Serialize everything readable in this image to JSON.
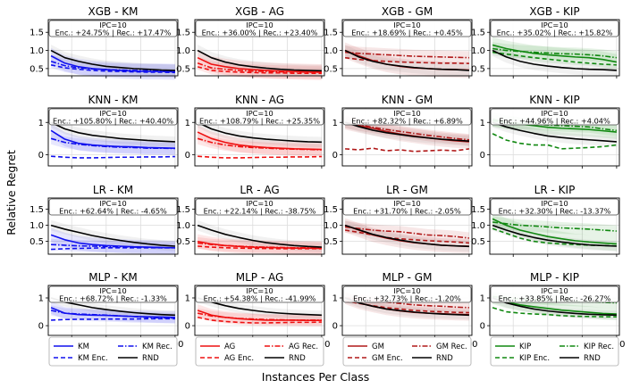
{
  "figure": {
    "ylabel": "Relative Regret",
    "xlabel": "Instances Per Class",
    "x_ticks": [
      25,
      50,
      75,
      100
    ]
  },
  "colors": {
    "KM": "#1010ee",
    "AG": "#ee1010",
    "GM": "#b01818",
    "KIP": "#108810",
    "RND": "#000000"
  },
  "legends": [
    {
      "main": "KM",
      "rec": "KM Rec.",
      "enc": "KM Enc.",
      "rnd": "RND",
      "color": "#1010ee"
    },
    {
      "main": "AG",
      "rec": "AG Rec.",
      "enc": "AG Enc.",
      "rnd": "RND",
      "color": "#ee1010"
    },
    {
      "main": "GM",
      "rec": "GM Rec.",
      "enc": "GM Enc.",
      "rnd": "RND",
      "color": "#b01818"
    },
    {
      "main": "KIP",
      "rec": "KIP Rec.",
      "enc": "KIP Enc.",
      "rnd": "RND",
      "color": "#108810"
    }
  ],
  "chart_data": [
    {
      "type": "line",
      "title": "XGB - KM",
      "ipc": "IPC=10",
      "stats": "Enc.:  +24.75% | Rec.: +17.47%",
      "method": "KM",
      "ylim": [
        0.3,
        1.85
      ],
      "yticks": [
        0.5,
        1.0,
        1.5
      ],
      "x": [
        10,
        20,
        30,
        40,
        50,
        60,
        70,
        80,
        90,
        100
      ],
      "series": {
        "main": [
          0.85,
          0.65,
          0.55,
          0.5,
          0.47,
          0.45,
          0.43,
          0.42,
          0.42,
          0.41
        ],
        "rec": [
          0.7,
          0.58,
          0.52,
          0.49,
          0.47,
          0.46,
          0.45,
          0.44,
          0.44,
          0.43
        ],
        "enc": [
          0.6,
          0.52,
          0.48,
          0.45,
          0.43,
          0.42,
          0.41,
          0.4,
          0.4,
          0.39
        ],
        "rnd": [
          1.0,
          0.8,
          0.7,
          0.62,
          0.56,
          0.53,
          0.5,
          0.48,
          0.46,
          0.45
        ]
      }
    },
    {
      "type": "line",
      "title": "XGB - AG",
      "ipc": "IPC=10",
      "stats": "Enc.:  +36.00% | Rec.: +23.40%",
      "method": "AG",
      "ylim": [
        0.3,
        1.85
      ],
      "yticks": [
        0.5,
        1.0,
        1.5
      ],
      "x": [
        10,
        20,
        30,
        40,
        50,
        60,
        70,
        80,
        90,
        100
      ],
      "series": {
        "main": [
          0.8,
          0.62,
          0.55,
          0.5,
          0.47,
          0.45,
          0.43,
          0.42,
          0.41,
          0.4
        ],
        "rec": [
          0.65,
          0.52,
          0.48,
          0.45,
          0.43,
          0.42,
          0.41,
          0.41,
          0.4,
          0.4
        ],
        "enc": [
          0.55,
          0.45,
          0.42,
          0.4,
          0.39,
          0.38,
          0.38,
          0.37,
          0.37,
          0.37
        ],
        "rnd": [
          1.0,
          0.8,
          0.68,
          0.6,
          0.55,
          0.51,
          0.48,
          0.46,
          0.45,
          0.44
        ]
      }
    },
    {
      "type": "line",
      "title": "XGB - GM",
      "ipc": "IPC=10",
      "stats": "Enc.:  +18.69% | Rec.: +0.45%",
      "method": "GM",
      "ylim": [
        0.3,
        1.85
      ],
      "yticks": [
        0.5,
        1.0,
        1.5
      ],
      "x": [
        10,
        20,
        30,
        40,
        50,
        60,
        70,
        80,
        90,
        100
      ],
      "series": {
        "main": [
          1.0,
          0.85,
          0.72,
          0.62,
          0.56,
          0.52,
          0.5,
          0.48,
          0.47,
          0.46
        ],
        "rec": [
          0.95,
          0.92,
          0.9,
          0.88,
          0.86,
          0.84,
          0.83,
          0.82,
          0.81,
          0.8
        ],
        "enc": [
          0.8,
          0.75,
          0.72,
          0.7,
          0.68,
          0.67,
          0.66,
          0.65,
          0.65,
          0.64
        ],
        "rnd": [
          1.0,
          0.82,
          0.7,
          0.62,
          0.57,
          0.53,
          0.5,
          0.48,
          0.47,
          0.45
        ]
      }
    },
    {
      "type": "line",
      "title": "XGB - KIP",
      "ipc": "IPC=10",
      "stats": "Enc.:  +35.02% | Rec.: +15.82%",
      "method": "KIP",
      "ylim": [
        0.3,
        1.85
      ],
      "yticks": [
        0.5,
        1.0,
        1.5
      ],
      "x": [
        10,
        20,
        30,
        40,
        50,
        60,
        70,
        80,
        90,
        100
      ],
      "series": {
        "main": [
          1.15,
          1.05,
          0.98,
          0.92,
          0.88,
          0.85,
          0.82,
          0.8,
          0.75,
          0.68
        ],
        "rec": [
          1.05,
          1.0,
          0.97,
          0.95,
          0.93,
          0.91,
          0.9,
          0.88,
          0.85,
          0.8
        ],
        "enc": [
          0.95,
          0.9,
          0.85,
          0.8,
          0.76,
          0.72,
          0.68,
          0.65,
          0.62,
          0.6
        ],
        "rnd": [
          1.0,
          0.82,
          0.7,
          0.62,
          0.57,
          0.53,
          0.5,
          0.48,
          0.47,
          0.45
        ]
      }
    },
    {
      "type": "line",
      "title": "KNN - KM",
      "ipc": "IPC=10",
      "stats": "Enc.:  +105.80% | Rec.: +40.40%",
      "method": "KM",
      "ylim": [
        -0.35,
        1.45
      ],
      "yticks": [
        0,
        1
      ],
      "x": [
        10,
        20,
        30,
        40,
        50,
        60,
        70,
        80,
        90,
        100
      ],
      "series": {
        "main": [
          0.75,
          0.48,
          0.35,
          0.3,
          0.27,
          0.25,
          0.24,
          0.22,
          0.21,
          0.2
        ],
        "rec": [
          0.5,
          0.38,
          0.32,
          0.28,
          0.25,
          0.23,
          0.22,
          0.2,
          0.2,
          0.19
        ],
        "enc": [
          -0.05,
          -0.08,
          -0.1,
          -0.1,
          -0.09,
          -0.08,
          -0.08,
          -0.07,
          -0.07,
          -0.06
        ],
        "rnd": [
          1.0,
          0.8,
          0.68,
          0.6,
          0.55,
          0.5,
          0.47,
          0.44,
          0.42,
          0.4
        ]
      }
    },
    {
      "type": "line",
      "title": "KNN - AG",
      "ipc": "IPC=10",
      "stats": "Enc.:  +108.79% | Rec.: +25.35%",
      "method": "AG",
      "ylim": [
        -0.35,
        1.45
      ],
      "yticks": [
        0,
        1
      ],
      "x": [
        10,
        20,
        30,
        40,
        50,
        60,
        70,
        80,
        90,
        100
      ],
      "series": {
        "main": [
          0.7,
          0.5,
          0.38,
          0.3,
          0.25,
          0.22,
          0.2,
          0.18,
          0.17,
          0.16
        ],
        "rec": [
          0.5,
          0.38,
          0.3,
          0.25,
          0.22,
          0.2,
          0.18,
          0.17,
          0.16,
          0.15
        ],
        "enc": [
          -0.05,
          -0.08,
          -0.1,
          -0.1,
          -0.09,
          -0.08,
          -0.08,
          -0.07,
          -0.07,
          -0.06
        ],
        "rnd": [
          1.0,
          0.8,
          0.67,
          0.58,
          0.52,
          0.48,
          0.45,
          0.42,
          0.4,
          0.39
        ]
      }
    },
    {
      "type": "line",
      "title": "KNN - GM",
      "ipc": "IPC=10",
      "stats": "Enc.:  +82.32% | Rec.: +6.89%",
      "method": "GM",
      "ylim": [
        -0.35,
        1.45
      ],
      "yticks": [
        0,
        1
      ],
      "x": [
        10,
        20,
        30,
        40,
        50,
        60,
        70,
        80,
        90,
        100
      ],
      "series": {
        "main": [
          1.0,
          0.9,
          0.82,
          0.72,
          0.64,
          0.58,
          0.52,
          0.47,
          0.43,
          0.4
        ],
        "rec": [
          1.0,
          0.92,
          0.85,
          0.78,
          0.72,
          0.66,
          0.6,
          0.55,
          0.5,
          0.46
        ],
        "enc": [
          0.18,
          0.15,
          0.2,
          0.12,
          0.15,
          0.1,
          0.12,
          0.14,
          0.12,
          0.18
        ],
        "rnd": [
          1.0,
          0.87,
          0.76,
          0.68,
          0.62,
          0.56,
          0.52,
          0.48,
          0.45,
          0.42
        ]
      }
    },
    {
      "type": "line",
      "title": "KNN - KIP",
      "ipc": "IPC=10",
      "stats": "Enc.:  +44.96% | Rec.: +4.04%",
      "method": "KIP",
      "ylim": [
        -0.35,
        1.45
      ],
      "yticks": [
        0,
        1
      ],
      "x": [
        10,
        20,
        30,
        40,
        50,
        60,
        70,
        80,
        90,
        100
      ],
      "series": {
        "main": [
          1.1,
          1.0,
          0.95,
          0.9,
          0.85,
          0.82,
          0.8,
          0.78,
          0.74,
          0.7
        ],
        "rec": [
          1.05,
          1.0,
          0.97,
          0.95,
          0.92,
          0.9,
          0.88,
          0.86,
          0.8,
          0.75
        ],
        "enc": [
          0.65,
          0.45,
          0.35,
          0.3,
          0.3,
          0.18,
          0.2,
          0.22,
          0.25,
          0.3
        ],
        "rnd": [
          1.0,
          0.86,
          0.75,
          0.66,
          0.58,
          0.53,
          0.49,
          0.46,
          0.43,
          0.4
        ]
      }
    },
    {
      "type": "line",
      "title": "LR - KM",
      "ipc": "IPC=10",
      "stats": "Enc.:  +62.64% | Rec.: -4.65%",
      "method": "KM",
      "ylim": [
        0.1,
        1.85
      ],
      "yticks": [
        0.5,
        1.0,
        1.5
      ],
      "x": [
        10,
        20,
        30,
        40,
        50,
        60,
        70,
        80,
        90,
        100
      ],
      "series": {
        "main": [
          0.7,
          0.55,
          0.45,
          0.4,
          0.37,
          0.35,
          0.33,
          0.32,
          0.31,
          0.3
        ],
        "rec": [
          0.4,
          0.38,
          0.36,
          0.35,
          0.34,
          0.33,
          0.32,
          0.31,
          0.3,
          0.3
        ],
        "enc": [
          0.25,
          0.27,
          0.28,
          0.29,
          0.3,
          0.3,
          0.3,
          0.3,
          0.3,
          0.3
        ],
        "rnd": [
          1.0,
          0.88,
          0.78,
          0.68,
          0.6,
          0.53,
          0.47,
          0.42,
          0.38,
          0.35
        ]
      }
    },
    {
      "type": "line",
      "title": "LR - AG",
      "ipc": "IPC=10",
      "stats": "Enc.:  +22.14% | Rec.: -38.75%",
      "method": "AG",
      "ylim": [
        0.1,
        1.85
      ],
      "yticks": [
        0.5,
        1.0,
        1.5
      ],
      "x": [
        10,
        20,
        30,
        40,
        50,
        60,
        70,
        80,
        90,
        100
      ],
      "series": {
        "main": [
          0.5,
          0.42,
          0.37,
          0.34,
          0.32,
          0.31,
          0.3,
          0.29,
          0.29,
          0.28
        ],
        "rec": [
          0.45,
          0.4,
          0.37,
          0.35,
          0.33,
          0.32,
          0.31,
          0.3,
          0.3,
          0.3
        ],
        "enc": [
          0.35,
          0.32,
          0.3,
          0.29,
          0.28,
          0.28,
          0.27,
          0.27,
          0.27,
          0.27
        ],
        "rnd": [
          1.0,
          0.85,
          0.72,
          0.62,
          0.53,
          0.46,
          0.41,
          0.37,
          0.34,
          0.32
        ]
      }
    },
    {
      "type": "line",
      "title": "LR - GM",
      "ipc": "IPC=10",
      "stats": "Enc.:  +31.70% | Rec.: -2.05%",
      "method": "GM",
      "ylim": [
        0.1,
        1.85
      ],
      "yticks": [
        0.5,
        1.0,
        1.5
      ],
      "x": [
        10,
        20,
        30,
        40,
        50,
        60,
        70,
        80,
        90,
        100
      ],
      "series": {
        "main": [
          1.0,
          0.85,
          0.7,
          0.6,
          0.52,
          0.46,
          0.42,
          0.38,
          0.36,
          0.35
        ],
        "rec": [
          0.95,
          0.9,
          0.85,
          0.82,
          0.8,
          0.75,
          0.7,
          0.68,
          0.65,
          0.6
        ],
        "enc": [
          0.85,
          0.78,
          0.7,
          0.62,
          0.58,
          0.55,
          0.52,
          0.5,
          0.48,
          0.45
        ],
        "rnd": [
          1.0,
          0.86,
          0.72,
          0.62,
          0.54,
          0.47,
          0.42,
          0.38,
          0.36,
          0.34
        ]
      }
    },
    {
      "type": "line",
      "title": "LR - KIP",
      "ipc": "IPC=10",
      "stats": "Enc.:  +32.30% | Rec.: -13.37%",
      "method": "KIP",
      "ylim": [
        0.1,
        1.85
      ],
      "yticks": [
        0.5,
        1.0,
        1.5
      ],
      "x": [
        10,
        20,
        30,
        40,
        50,
        60,
        70,
        80,
        90,
        100
      ],
      "series": {
        "main": [
          1.2,
          1.0,
          0.85,
          0.75,
          0.65,
          0.58,
          0.52,
          0.48,
          0.45,
          0.42
        ],
        "rec": [
          1.1,
          1.05,
          1.0,
          0.98,
          0.95,
          0.92,
          0.9,
          0.88,
          0.85,
          0.82
        ],
        "enc": [
          0.9,
          0.75,
          0.6,
          0.5,
          0.45,
          0.42,
          0.4,
          0.38,
          0.37,
          0.36
        ],
        "rnd": [
          1.0,
          0.85,
          0.72,
          0.62,
          0.54,
          0.48,
          0.43,
          0.39,
          0.37,
          0.35
        ]
      }
    },
    {
      "type": "line",
      "title": "MLP - KM",
      "ipc": "IPC=10",
      "stats": "Enc.:  +68.72% | Rec.: -1.33%",
      "method": "KM",
      "ylim": [
        -0.35,
        1.45
      ],
      "yticks": [
        0,
        1
      ],
      "x": [
        10,
        20,
        30,
        40,
        50,
        60,
        70,
        80,
        90,
        100
      ],
      "series": {
        "main": [
          0.65,
          0.45,
          0.4,
          0.38,
          0.37,
          0.35,
          0.33,
          0.32,
          0.31,
          0.3
        ],
        "rec": [
          0.55,
          0.45,
          0.42,
          0.4,
          0.38,
          0.35,
          0.33,
          0.3,
          0.28,
          0.27
        ],
        "enc": [
          0.2,
          0.22,
          0.23,
          0.23,
          0.24,
          0.24,
          0.24,
          0.25,
          0.25,
          0.25
        ],
        "rnd": [
          1.0,
          0.85,
          0.75,
          0.65,
          0.58,
          0.52,
          0.47,
          0.43,
          0.4,
          0.38
        ]
      }
    },
    {
      "type": "line",
      "title": "MLP - AG",
      "ipc": "IPC=10",
      "stats": "Enc.:  +54.38% | Rec.: -41.99%",
      "method": "AG",
      "ylim": [
        -0.35,
        1.45
      ],
      "yticks": [
        0,
        1
      ],
      "x": [
        10,
        20,
        30,
        40,
        50,
        60,
        70,
        80,
        90,
        100
      ],
      "series": {
        "main": [
          0.55,
          0.38,
          0.3,
          0.25,
          0.22,
          0.2,
          0.2,
          0.2,
          0.19,
          0.19
        ],
        "rec": [
          0.45,
          0.35,
          0.3,
          0.26,
          0.24,
          0.22,
          0.21,
          0.2,
          0.2,
          0.2
        ],
        "enc": [
          0.3,
          0.2,
          0.15,
          0.12,
          0.1,
          0.1,
          0.11,
          0.12,
          0.12,
          0.13
        ],
        "rnd": [
          1.0,
          0.85,
          0.72,
          0.62,
          0.55,
          0.49,
          0.45,
          0.42,
          0.4,
          0.38
        ]
      }
    },
    {
      "type": "line",
      "title": "MLP - GM",
      "ipc": "IPC=10",
      "stats": "Enc.:  +32.73% | Rec.: -1.20%",
      "method": "GM",
      "ylim": [
        -0.35,
        1.45
      ],
      "yticks": [
        0,
        1
      ],
      "x": [
        10,
        20,
        30,
        40,
        50,
        60,
        70,
        80,
        90,
        100
      ],
      "series": {
        "main": [
          1.0,
          0.82,
          0.7,
          0.6,
          0.53,
          0.48,
          0.45,
          0.43,
          0.41,
          0.4
        ],
        "rec": [
          1.0,
          0.95,
          0.9,
          0.85,
          0.8,
          0.75,
          0.72,
          0.7,
          0.67,
          0.65
        ],
        "enc": [
          0.9,
          0.8,
          0.72,
          0.65,
          0.6,
          0.55,
          0.52,
          0.5,
          0.48,
          0.47
        ],
        "rnd": [
          1.0,
          0.82,
          0.7,
          0.6,
          0.54,
          0.49,
          0.45,
          0.42,
          0.4,
          0.38
        ]
      }
    },
    {
      "type": "line",
      "title": "MLP - KIP",
      "ipc": "IPC=10",
      "stats": "Enc.:  +33.85% | Rec.: -26.27%",
      "method": "KIP",
      "ylim": [
        -0.35,
        1.45
      ],
      "yticks": [
        0,
        1
      ],
      "x": [
        10,
        20,
        30,
        40,
        50,
        60,
        70,
        80,
        90,
        100
      ],
      "series": {
        "main": [
          1.0,
          0.85,
          0.75,
          0.68,
          0.62,
          0.56,
          0.52,
          0.48,
          0.44,
          0.42
        ],
        "rec": [
          1.05,
          1.0,
          0.97,
          0.95,
          0.92,
          0.9,
          0.88,
          0.86,
          0.84,
          0.82
        ],
        "enc": [
          0.65,
          0.5,
          0.45,
          0.42,
          0.4,
          0.36,
          0.34,
          0.33,
          0.32,
          0.32
        ],
        "rnd": [
          1.0,
          0.82,
          0.7,
          0.6,
          0.53,
          0.48,
          0.44,
          0.41,
          0.39,
          0.38
        ]
      }
    }
  ]
}
